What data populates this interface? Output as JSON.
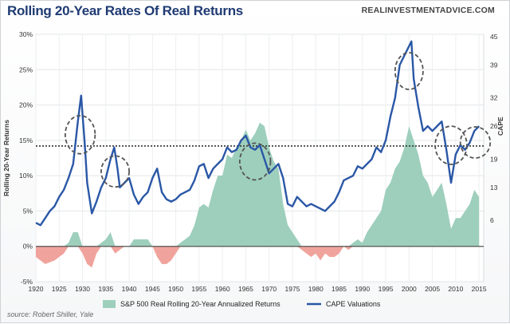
{
  "header": {
    "title": "Rolling 20-Year Rates Of Real Returns",
    "site": "REALINVESTMENTADVICE.COM"
  },
  "source": "source: Robert Shiller, Yale",
  "colors": {
    "title": "#1f3b73",
    "area_positive": "#9ecfbd",
    "area_negative": "#f0a39c",
    "cape_line": "#2a57a6",
    "reference_line": "#333333",
    "circles": "#555555"
  },
  "chart_data": {
    "type": "area",
    "title": "Rolling 20-Year Rates Of Real Returns",
    "ylabel": "Rolling 20-Year Returns",
    "y2label": "CAPE",
    "xlim": [
      1920,
      2016
    ],
    "ylim": [
      -5,
      30
    ],
    "y2lim": [
      -7,
      45.5
    ],
    "x_ticks": [
      1920,
      1925,
      1930,
      1935,
      1940,
      1945,
      1950,
      1955,
      1960,
      1965,
      1970,
      1975,
      1980,
      1985,
      1990,
      1995,
      2000,
      2005,
      2010,
      2015
    ],
    "y_ticks": [
      -5,
      0,
      5,
      10,
      15,
      20,
      25,
      30
    ],
    "y_tick_labels": [
      "-5%",
      "0%",
      "5%",
      "10%",
      "15%",
      "20%",
      "25%",
      "30%"
    ],
    "y2_ticks": [
      6,
      13,
      19,
      26,
      32,
      39,
      45
    ],
    "grid": true,
    "legend_position": "bottom",
    "reference_line_pct": 14.2,
    "series": [
      {
        "name": "S&P 500 Real Rolling 20-Year Annualized Returns",
        "kind": "area",
        "x": [
          1920,
          1922,
          1924,
          1926,
          1927,
          1928,
          1929,
          1930,
          1931,
          1932,
          1933,
          1934,
          1935,
          1936,
          1937,
          1938,
          1939,
          1940,
          1941,
          1942,
          1943,
          1944,
          1945,
          1946,
          1947,
          1948,
          1949,
          1950,
          1951,
          1952,
          1953,
          1954,
          1955,
          1956,
          1957,
          1958,
          1959,
          1960,
          1961,
          1962,
          1963,
          1964,
          1965,
          1966,
          1967,
          1968,
          1969,
          1970,
          1971,
          1972,
          1973,
          1974,
          1975,
          1976,
          1977,
          1978,
          1979,
          1980,
          1981,
          1982,
          1983,
          1984,
          1985,
          1986,
          1987,
          1988,
          1989,
          1990,
          1991,
          1992,
          1993,
          1994,
          1995,
          1996,
          1997,
          1998,
          1999,
          2000,
          2001,
          2002,
          2003,
          2004,
          2005,
          2006,
          2007,
          2008,
          2009,
          2010,
          2011,
          2012,
          2013,
          2014,
          2015
        ],
        "values": [
          -1.5,
          -2.5,
          -2.0,
          -1.0,
          0.5,
          2.0,
          2.0,
          -1.0,
          -2.5,
          -3.0,
          -1.0,
          0.5,
          1.0,
          2.0,
          -1.0,
          -0.5,
          0.0,
          0.0,
          1.0,
          1.0,
          1.0,
          1.0,
          0.0,
          -1.5,
          -2.5,
          -2.5,
          -2.0,
          -1.0,
          0.5,
          1.0,
          1.5,
          3.0,
          5.5,
          6.0,
          5.5,
          8.0,
          10.0,
          10.0,
          13.0,
          12.5,
          14.0,
          15.0,
          16.5,
          15.0,
          16.0,
          17.5,
          17.0,
          14.0,
          12.0,
          11.0,
          6.0,
          3.0,
          2.0,
          1.0,
          -0.5,
          -1.0,
          -1.5,
          -1.0,
          -2.0,
          -1.0,
          -1.5,
          -1.5,
          -1.0,
          0.0,
          -0.5,
          0.5,
          1.0,
          0.5,
          2.0,
          3.0,
          4.0,
          5.0,
          8.0,
          9.0,
          11.0,
          12.0,
          14.0,
          17.0,
          15.0,
          13.0,
          10.0,
          9.0,
          7.0,
          8.0,
          9.0,
          6.0,
          2.5,
          4.0,
          4.0,
          5.0,
          6.0,
          8.0,
          7.0
        ]
      },
      {
        "name": "CAPE Valuations",
        "kind": "line",
        "axis": "right",
        "x": [
          1920,
          1921,
          1922,
          1923,
          1924,
          1925,
          1926,
          1927,
          1928,
          1929,
          1929.7,
          1930.5,
          1931,
          1932,
          1933,
          1934,
          1935,
          1936,
          1936.8,
          1937.5,
          1938,
          1939,
          1940,
          1941,
          1942,
          1943,
          1944,
          1945,
          1946,
          1947,
          1948,
          1949,
          1950,
          1951,
          1952,
          1953,
          1954,
          1955,
          1956,
          1957,
          1958,
          1959,
          1960,
          1961,
          1962,
          1963,
          1964,
          1965,
          1966,
          1967,
          1968,
          1969,
          1970,
          1971,
          1972,
          1973,
          1974,
          1975,
          1976,
          1977,
          1978,
          1979,
          1980,
          1981,
          1982,
          1983,
          1984,
          1985,
          1986,
          1987,
          1988,
          1989,
          1990,
          1991,
          1992,
          1993,
          1994,
          1995,
          1996,
          1997,
          1998,
          1999,
          2000,
          2000.5,
          2001,
          2002,
          2003,
          2004,
          2005,
          2006,
          2007,
          2008,
          2009,
          2010,
          2011,
          2012,
          2013,
          2014,
          2015
        ],
        "values": [
          5.5,
          5.0,
          6.5,
          8.0,
          9.0,
          11.0,
          12.5,
          15.0,
          18.0,
          27.0,
          32.5,
          22.0,
          14.0,
          7.5,
          10.0,
          13.0,
          15.0,
          19.0,
          21.5,
          17.0,
          13.0,
          14.0,
          15.0,
          11.5,
          9.5,
          11.0,
          12.0,
          15.0,
          17.0,
          12.0,
          10.5,
          10.0,
          10.5,
          11.5,
          12.0,
          12.5,
          14.5,
          17.5,
          18.0,
          15.0,
          17.0,
          18.0,
          19.0,
          21.5,
          20.5,
          21.0,
          23.0,
          24.0,
          21.5,
          21.0,
          22.0,
          19.0,
          16.0,
          17.0,
          18.0,
          15.0,
          9.5,
          9.0,
          11.0,
          10.0,
          9.0,
          9.5,
          9.0,
          8.5,
          8.0,
          9.0,
          10.0,
          12.0,
          14.5,
          15.0,
          15.5,
          17.5,
          17.0,
          18.0,
          19.0,
          21.5,
          20.5,
          23.0,
          28.0,
          32.0,
          39.0,
          41.0,
          43.0,
          44.0,
          36.0,
          30.0,
          25.0,
          26.0,
          25.0,
          26.0,
          27.0,
          21.0,
          14.0,
          20.0,
          22.0,
          21.0,
          22.5,
          25.0,
          26.0
        ]
      }
    ],
    "annotations": [
      {
        "kind": "dashed-ellipse",
        "cx": 1929.5,
        "cy": 15.8,
        "rx": 3.2,
        "ry": 2.7
      },
      {
        "kind": "dashed-ellipse",
        "cx": 1937.0,
        "cy": 10.6,
        "rx": 3.0,
        "ry": 2.2
      },
      {
        "kind": "dashed-ellipse",
        "cx": 1967.0,
        "cy": 12.0,
        "rx": 3.3,
        "ry": 2.6
      },
      {
        "kind": "dashed-ellipse",
        "cx": 2000.0,
        "cy": 24.8,
        "rx": 3.0,
        "ry": 2.6
      },
      {
        "kind": "dashed-ellipse",
        "cx": 2009.0,
        "cy": 14.3,
        "rx": 3.4,
        "ry": 2.7
      },
      {
        "kind": "dashed-ellipse",
        "cx": 2014.2,
        "cy": 14.7,
        "rx": 3.2,
        "ry": 2.2
      }
    ]
  }
}
